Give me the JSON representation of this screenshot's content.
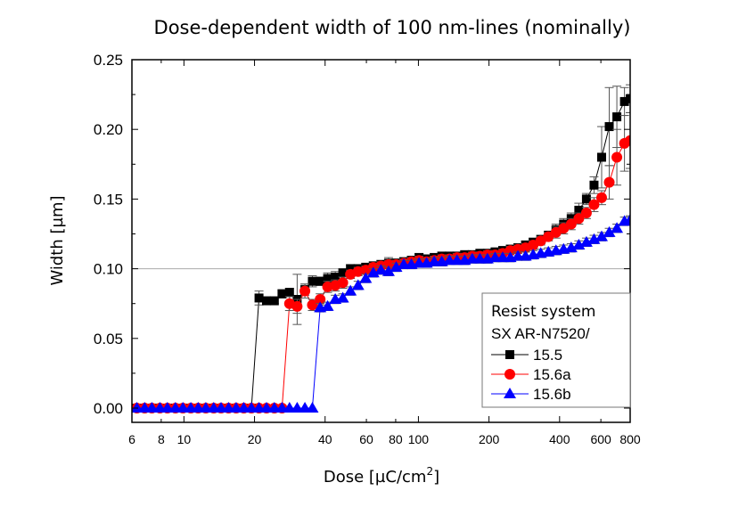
{
  "chart_data": {
    "type": "line",
    "title": "Dose-dependent width of 100 nm-lines (nominally)",
    "xlabel": "Dose [µC/cm²]",
    "xlabel_main": "Dose [µC/cm",
    "xlabel_sup": "2",
    "xlabel_end": "]",
    "ylabel": "Width [µm]",
    "xscale": "log",
    "xlim": [
      6,
      800
    ],
    "ylim": [
      -0.01,
      0.25
    ],
    "x_ticks": [
      6,
      8,
      10,
      20,
      40,
      60,
      80,
      100,
      200,
      400,
      600,
      800
    ],
    "x_tick_labels": [
      "6",
      "8",
      "10",
      "20",
      "40",
      "60",
      "80",
      "100",
      "200",
      "400",
      "600",
      "800"
    ],
    "y_ticks": [
      0.0,
      0.05,
      0.1,
      0.15,
      0.2,
      0.25
    ],
    "y_tick_labels": [
      "0.00",
      "0.05",
      "0.10",
      "0.15",
      "0.20",
      "0.25"
    ],
    "reference_line_y": 0.1,
    "legend": {
      "position": "bottom-right",
      "title_line1": "Resist system",
      "title_line2": "SX AR-N7520/"
    },
    "series": [
      {
        "name": "15.5",
        "color": "#000000",
        "marker": "square",
        "x": [
          6.3,
          6.8,
          7.3,
          7.9,
          8.5,
          9.2,
          9.9,
          10.7,
          11.5,
          12.4,
          13.4,
          14.4,
          15.5,
          16.7,
          18.0,
          19.4,
          20.9,
          22.5,
          24.3,
          26.2,
          28.2,
          30.4,
          32.8,
          35.3,
          38.1,
          41.0,
          44.2,
          47.6,
          51.3,
          55.3,
          59.6,
          64.2,
          69.2,
          74.6,
          80.4,
          86.6,
          93.3,
          100.6,
          108.4,
          116.8,
          125.8,
          135.6,
          146.1,
          157.5,
          169.7,
          182.9,
          197.0,
          212.3,
          228.8,
          246.6,
          265.7,
          286.3,
          308.5,
          332.5,
          358.3,
          386.1,
          416.0,
          448.3,
          483.1,
          520.6,
          561.0,
          604.5,
          651.4,
          702.0,
          756.5,
          800.0
        ],
        "y": [
          0,
          0,
          0,
          0,
          0,
          0,
          0,
          0,
          0,
          0,
          0,
          0,
          0,
          0,
          0,
          0,
          0.079,
          0.077,
          0.077,
          0.082,
          0.083,
          0.078,
          0.085,
          0.091,
          0.091,
          0.093,
          0.094,
          0.097,
          0.1,
          0.1,
          0.101,
          0.102,
          0.103,
          0.104,
          0.104,
          0.105,
          0.106,
          0.108,
          0.107,
          0.108,
          0.109,
          0.109,
          0.109,
          0.11,
          0.11,
          0.111,
          0.111,
          0.112,
          0.113,
          0.114,
          0.115,
          0.117,
          0.119,
          0.121,
          0.124,
          0.128,
          0.132,
          0.136,
          0.142,
          0.15,
          0.16,
          0.18,
          0.202,
          0.209,
          0.22,
          0.222
        ],
        "err": [
          0,
          0,
          0,
          0,
          0,
          0,
          0,
          0,
          0,
          0,
          0,
          0,
          0,
          0,
          0,
          0,
          0.005,
          0.002,
          0.002,
          0.003,
          0.003,
          0.018,
          0.004,
          0.004,
          0.003,
          0.004,
          0.004,
          0.003,
          0.003,
          0.003,
          0.003,
          0.003,
          0.003,
          0.004,
          0.003,
          0.003,
          0.003,
          0.003,
          0.003,
          0.003,
          0.003,
          0.003,
          0.003,
          0.003,
          0.003,
          0.003,
          0.003,
          0.003,
          0.003,
          0.003,
          0.003,
          0.003,
          0.003,
          0.003,
          0.003,
          0.004,
          0.004,
          0.004,
          0.005,
          0.004,
          0.006,
          0.022,
          0.028,
          0.022,
          0.01,
          0.01
        ]
      },
      {
        "name": "15.6a",
        "color": "#ff0000",
        "marker": "circle",
        "x": [
          6.3,
          6.8,
          7.3,
          7.9,
          8.5,
          9.2,
          9.9,
          10.7,
          11.5,
          12.4,
          13.4,
          14.4,
          15.5,
          16.7,
          18.0,
          19.4,
          20.9,
          22.5,
          24.3,
          26.2,
          28.2,
          30.4,
          32.8,
          35.3,
          38.1,
          41.0,
          44.2,
          47.6,
          51.3,
          55.3,
          59.6,
          64.2,
          69.2,
          74.6,
          80.4,
          86.6,
          93.3,
          100.6,
          108.4,
          116.8,
          125.8,
          135.6,
          146.1,
          157.5,
          169.7,
          182.9,
          197.0,
          212.3,
          228.8,
          246.6,
          265.7,
          286.3,
          308.5,
          332.5,
          358.3,
          386.1,
          416.0,
          448.3,
          483.1,
          520.6,
          561.0,
          604.5,
          651.4,
          702.0,
          756.5,
          800.0
        ],
        "y": [
          0,
          0,
          0,
          0,
          0,
          0,
          0,
          0,
          0,
          0,
          0,
          0,
          0,
          0,
          0,
          0,
          0,
          0,
          0,
          0,
          0.075,
          0.073,
          0.084,
          0.074,
          0.078,
          0.087,
          0.088,
          0.09,
          0.096,
          0.098,
          0.099,
          0.101,
          0.102,
          0.103,
          0.103,
          0.104,
          0.105,
          0.106,
          0.105,
          0.106,
          0.107,
          0.107,
          0.108,
          0.108,
          0.109,
          0.109,
          0.11,
          0.11,
          0.111,
          0.113,
          0.114,
          0.115,
          0.117,
          0.12,
          0.123,
          0.126,
          0.129,
          0.132,
          0.136,
          0.14,
          0.146,
          0.151,
          0.162,
          0.18,
          0.19,
          0.192
        ],
        "err": [
          0,
          0,
          0,
          0,
          0,
          0,
          0,
          0,
          0,
          0,
          0,
          0,
          0,
          0,
          0,
          0,
          0,
          0,
          0,
          0,
          0.005,
          0.005,
          0.005,
          0.004,
          0.004,
          0.004,
          0.004,
          0.004,
          0.003,
          0.003,
          0.003,
          0.003,
          0.003,
          0.003,
          0.003,
          0.003,
          0.003,
          0.003,
          0.003,
          0.003,
          0.003,
          0.003,
          0.003,
          0.003,
          0.003,
          0.003,
          0.003,
          0.003,
          0.003,
          0.003,
          0.003,
          0.003,
          0.003,
          0.003,
          0.003,
          0.004,
          0.004,
          0.004,
          0.004,
          0.004,
          0.005,
          0.005,
          0.012,
          0.02,
          0.02,
          0.02
        ]
      },
      {
        "name": "15.6b",
        "color": "#0000ff",
        "marker": "triangle",
        "x": [
          6.3,
          6.8,
          7.3,
          7.9,
          8.5,
          9.2,
          9.9,
          10.7,
          11.5,
          12.4,
          13.4,
          14.4,
          15.5,
          16.7,
          18.0,
          19.4,
          20.9,
          22.5,
          24.3,
          26.2,
          28.2,
          30.4,
          32.8,
          35.3,
          38.1,
          41.0,
          44.2,
          47.6,
          51.3,
          55.3,
          59.6,
          64.2,
          69.2,
          74.6,
          80.4,
          86.6,
          93.3,
          100.6,
          108.4,
          116.8,
          125.8,
          135.6,
          146.1,
          157.5,
          169.7,
          182.9,
          197.0,
          212.3,
          228.8,
          246.6,
          265.7,
          286.3,
          308.5,
          332.5,
          358.3,
          386.1,
          416.0,
          448.3,
          483.1,
          520.6,
          561.0,
          604.5,
          651.4,
          702.0,
          756.5,
          800.0
        ],
        "y": [
          0,
          0,
          0,
          0,
          0,
          0,
          0,
          0,
          0,
          0,
          0,
          0,
          0,
          0,
          0,
          0,
          0,
          0,
          0,
          0,
          0,
          0,
          0,
          0,
          0.072,
          0.073,
          0.078,
          0.079,
          0.084,
          0.088,
          0.093,
          0.097,
          0.099,
          0.098,
          0.101,
          0.103,
          0.103,
          0.104,
          0.104,
          0.105,
          0.105,
          0.106,
          0.106,
          0.106,
          0.107,
          0.107,
          0.107,
          0.108,
          0.108,
          0.108,
          0.109,
          0.109,
          0.11,
          0.111,
          0.112,
          0.113,
          0.114,
          0.115,
          0.117,
          0.119,
          0.121,
          0.123,
          0.126,
          0.129,
          0.134,
          0.135
        ],
        "err": [
          0,
          0,
          0,
          0,
          0,
          0,
          0,
          0,
          0,
          0,
          0,
          0,
          0,
          0,
          0,
          0,
          0,
          0,
          0,
          0,
          0,
          0,
          0,
          0,
          0.003,
          0.003,
          0.003,
          0.003,
          0.003,
          0.003,
          0.003,
          0.003,
          0.003,
          0.003,
          0.003,
          0.003,
          0.003,
          0.003,
          0.003,
          0.003,
          0.003,
          0.003,
          0.003,
          0.003,
          0.003,
          0.003,
          0.003,
          0.003,
          0.003,
          0.003,
          0.003,
          0.003,
          0.003,
          0.003,
          0.003,
          0.003,
          0.003,
          0.003,
          0.003,
          0.003,
          0.003,
          0.003,
          0.003,
          0.003,
          0.003,
          0.003
        ]
      }
    ]
  }
}
